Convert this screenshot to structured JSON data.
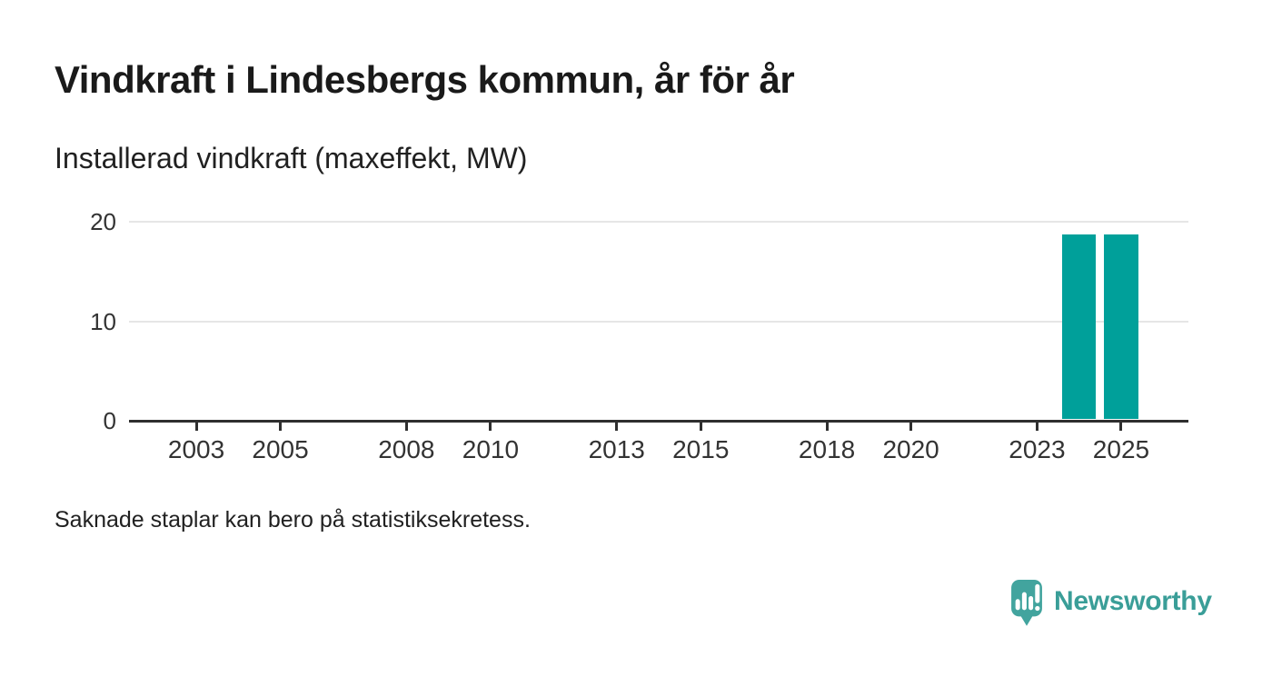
{
  "title": "Vindkraft i Lindesbergs kommun, år för år",
  "subtitle": "Installerad vindkraft (maxeffekt, MW)",
  "footnote": "Saknade staplar kan bero på statistiksekretess.",
  "branding": {
    "name": "Newsworthy",
    "icon": "newsworthy-speech-bubble-bar-chart-icon",
    "icon_color": "#42a49e",
    "text_color": "#3a9e98"
  },
  "chart_data": {
    "type": "bar",
    "title": "Vindkraft i Lindesbergs kommun, år för år",
    "ylabel": "Installerad vindkraft (maxeffekt, MW)",
    "series": [
      {
        "name": "Installerad vindkraft (maxeffekt, MW)",
        "data": [
          {
            "x": 2024,
            "y": 18.7
          },
          {
            "x": 2025,
            "y": 18.7
          }
        ]
      }
    ],
    "note": "Saknade staplar kan bero på statistiksekretess.",
    "xticks": [
      2003,
      2005,
      2008,
      2010,
      2013,
      2015,
      2018,
      2020,
      2023,
      2025
    ],
    "yticks": [
      0,
      10,
      20
    ],
    "ylim": [
      0,
      20
    ],
    "xlim": [
      2001.4,
      2026.6
    ],
    "bar_width_years": 0.81,
    "bar_color": "#00a09a",
    "grid": "horizontal-only",
    "legend": "none",
    "gridline_color": "#e6e6e6",
    "axis_color": "#2f2f2f",
    "label_color": "#333333"
  }
}
